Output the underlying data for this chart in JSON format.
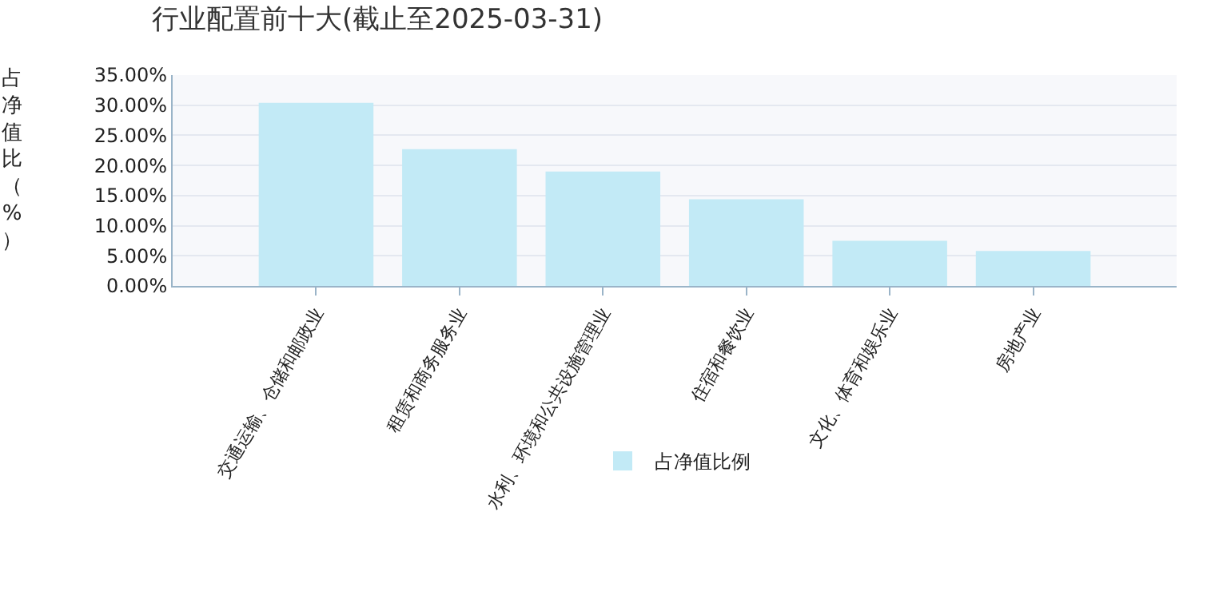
{
  "chart_data": {
    "type": "bar",
    "title": "行业配置前十大(截止至2025-03-31)",
    "ylabel": "占净值比（%）",
    "categories": [
      "交通运输、仓储和邮政业",
      "租赁和商务服务业",
      "水利、环境和公共设施管理业",
      "住宿和餐饮业",
      "文化、体育和娱乐业",
      "房地产业"
    ],
    "series": [
      {
        "name": "占净值比例",
        "color": "#c2eaf6",
        "values": [
          30.4,
          22.7,
          19.0,
          14.4,
          7.5,
          5.8
        ]
      }
    ],
    "ylim": [
      0,
      35
    ],
    "yticks": [
      {
        "value": 0,
        "label": "0.00%"
      },
      {
        "value": 5,
        "label": "5.00%"
      },
      {
        "value": 10,
        "label": "10.00%"
      },
      {
        "value": 15,
        "label": "15.00%"
      },
      {
        "value": 20,
        "label": "20.00%"
      },
      {
        "value": 25,
        "label": "25.00%"
      },
      {
        "value": 30,
        "label": "30.00%"
      },
      {
        "value": 35,
        "label": "35.00%"
      }
    ],
    "grid": "y",
    "legend": "bottom"
  }
}
